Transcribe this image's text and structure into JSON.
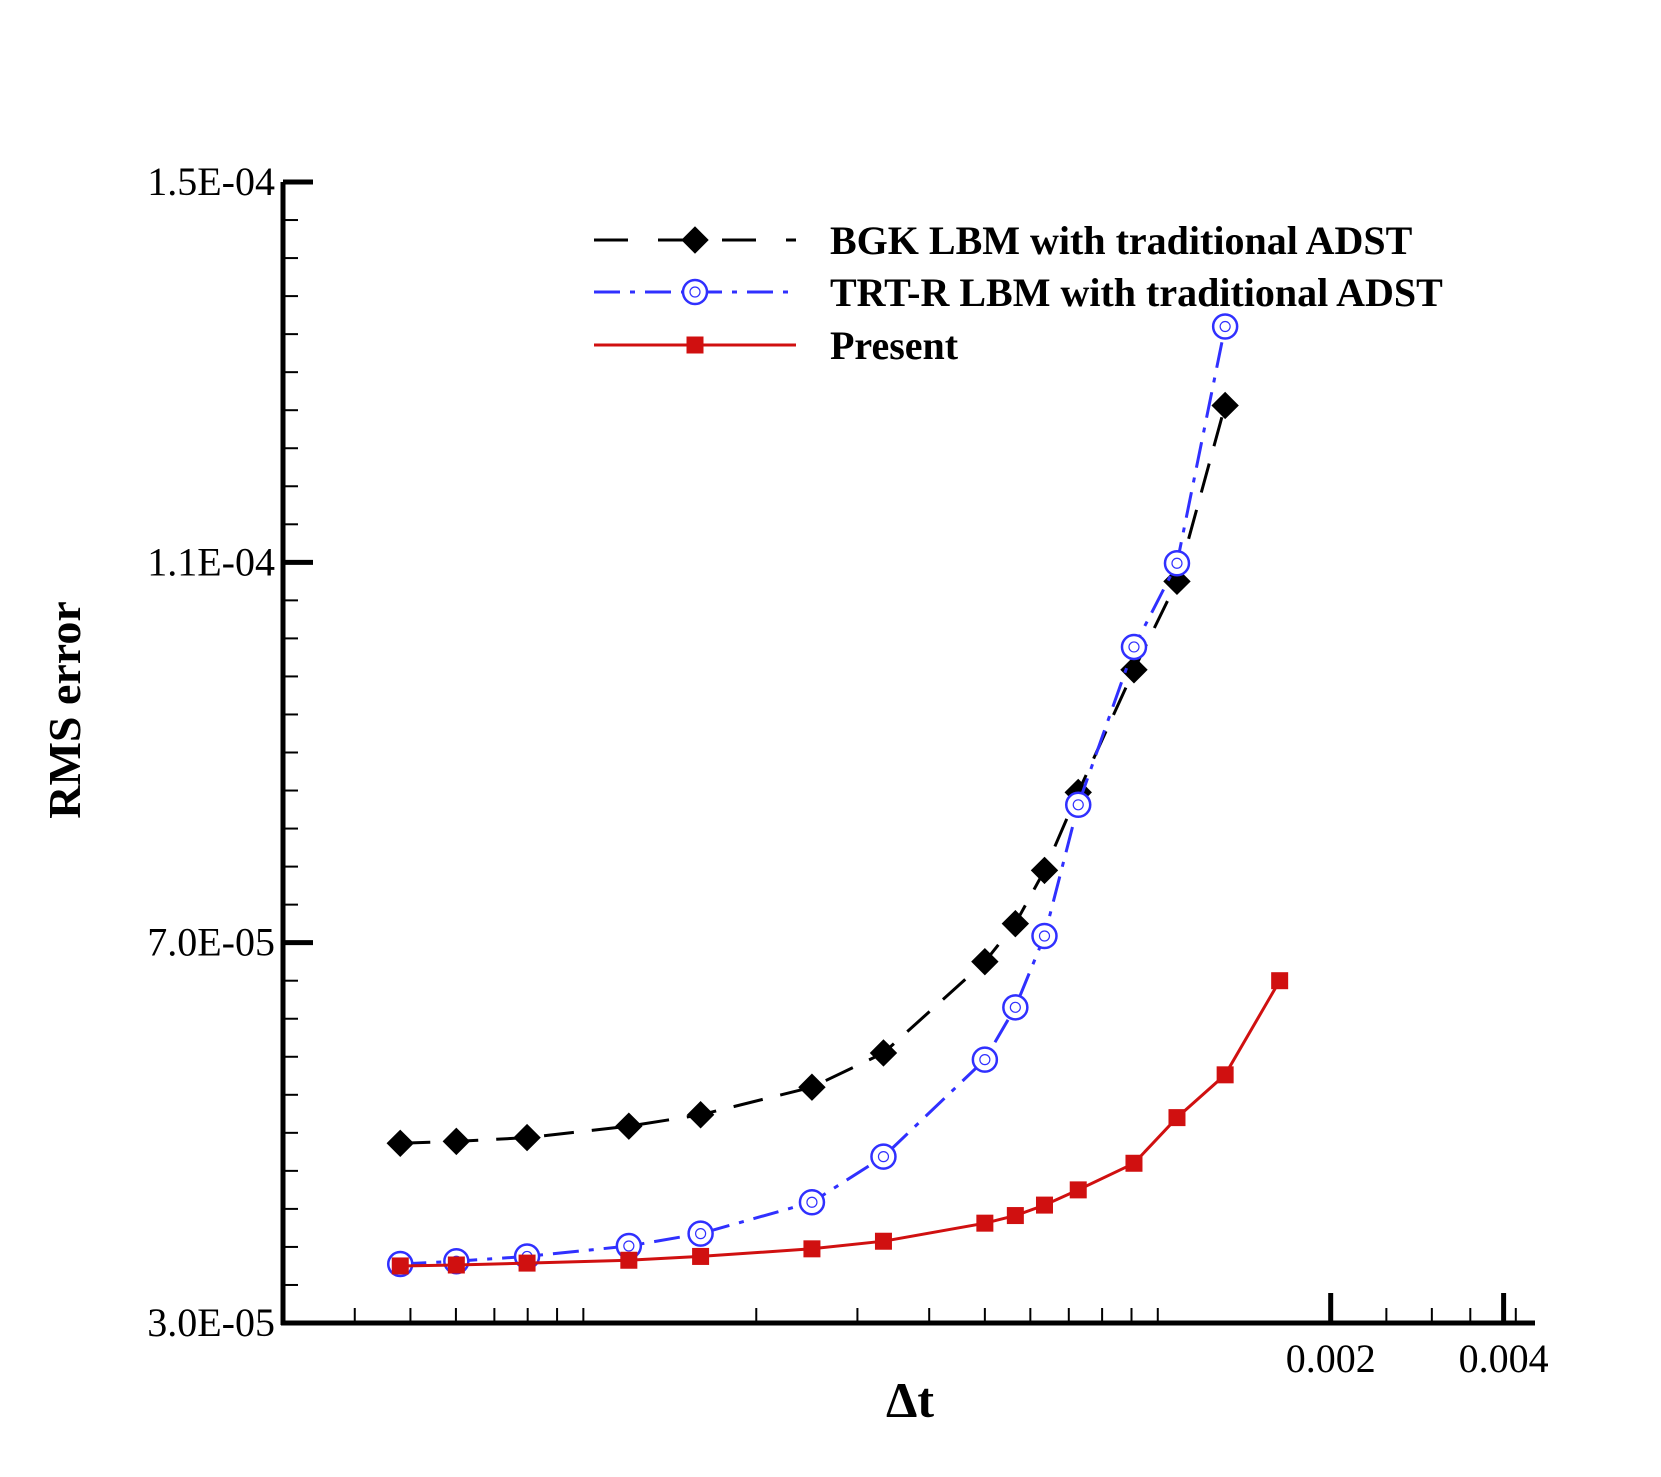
{
  "chart_data": {
    "type": "line",
    "xscale": "log",
    "xlabel": "Δt",
    "ylabel": "RMS error",
    "xlim": [
      3e-05,
      0.0045
    ],
    "ylim": [
      3e-05,
      0.00015
    ],
    "xticks": [
      {
        "value": 0.002,
        "label": "0.002"
      },
      {
        "value": 0.004,
        "label": "0.004"
      }
    ],
    "yticks": [
      {
        "value": 3e-05,
        "label": "3.0E-05"
      },
      {
        "value": 7e-05,
        "label": "7.0E-05"
      },
      {
        "value": 0.00011,
        "label": "1.1E-04"
      },
      {
        "value": 0.00015,
        "label": "1.5E-04"
      }
    ],
    "series": [
      {
        "name": "BGK LBM with traditional ADST",
        "color": "#000000",
        "marker": "filled-diamond",
        "dash": "dashed",
        "x": [
          4.8e-05,
          6.01e-05,
          7.98e-05,
          0.00012,
          0.00016,
          0.00025,
          0.000333,
          0.0005,
          0.000565,
          0.000635,
          0.000727,
          0.000909,
          0.00108,
          0.00131
        ],
        "y": [
          4.89e-05,
          4.91e-05,
          4.95e-05,
          5.07e-05,
          5.19e-05,
          5.48e-05,
          5.84e-05,
          6.8e-05,
          7.2e-05,
          7.76e-05,
          8.58e-05,
          9.87e-05,
          0.000108,
          0.0001265
        ]
      },
      {
        "name": "TRT-R LBM with traditional ADST",
        "color": "#3030ff",
        "marker": "open-circle",
        "dash": "dash-dot",
        "x": [
          4.8e-05,
          6.01e-05,
          7.98e-05,
          0.00012,
          0.00016,
          0.00025,
          0.000333,
          0.0005,
          0.000565,
          0.000635,
          0.000727,
          0.000909,
          0.00108,
          0.00131
        ],
        "y": [
          3.62e-05,
          3.65e-05,
          3.7e-05,
          3.81e-05,
          3.94e-05,
          4.27e-05,
          4.75e-05,
          5.77e-05,
          6.32e-05,
          7.07e-05,
          8.45e-05,
          0.0001011,
          0.0001099,
          0.0001348
        ]
      },
      {
        "name": "Present",
        "color": "#d01010",
        "marker": "filled-square",
        "dash": "solid",
        "x": [
          4.8e-05,
          6.01e-05,
          7.98e-05,
          0.00012,
          0.00016,
          0.00025,
          0.000333,
          0.0005,
          0.000565,
          0.000635,
          0.000727,
          0.000909,
          0.00108,
          0.00131,
          0.00163
        ],
        "y": [
          3.6e-05,
          3.61e-05,
          3.63e-05,
          3.66e-05,
          3.7e-05,
          3.78e-05,
          3.86e-05,
          4.05e-05,
          4.13e-05,
          4.24e-05,
          4.4e-05,
          4.68e-05,
          5.16e-05,
          5.61e-05,
          6.6e-05
        ]
      }
    ]
  }
}
